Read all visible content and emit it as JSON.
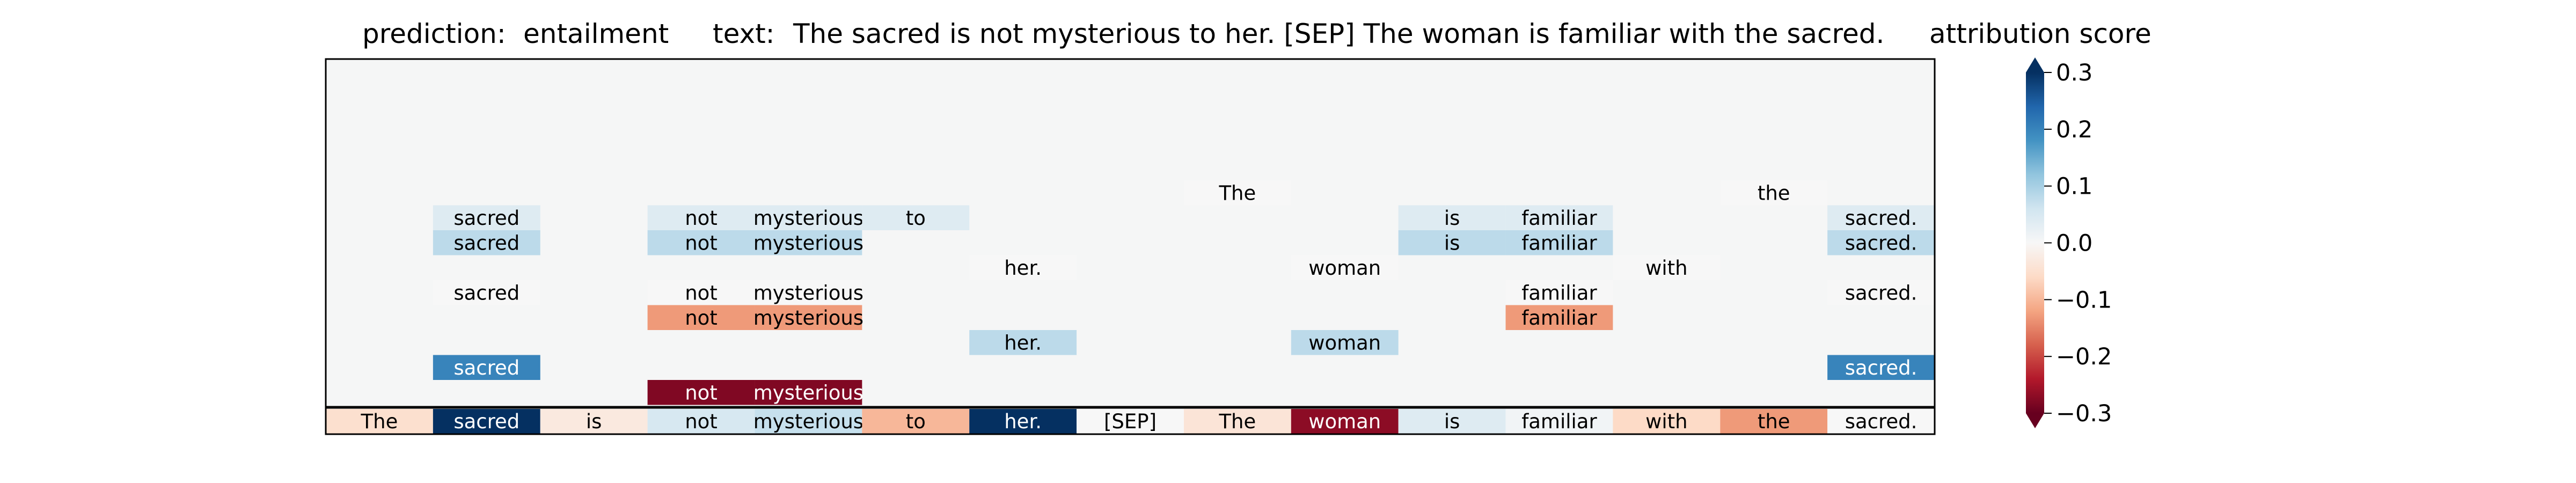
{
  "header": {
    "prediction_label": "prediction:",
    "prediction_value": "entailment",
    "text_label": "text:",
    "text_value": "The sacred is not mysterious to her. [SEP] The woman is familiar with the sacred.",
    "colorbar_title": "attribution score"
  },
  "colors": {
    "background": "#f5f6f6",
    "colormap": "RdBu",
    "positive": "#053061",
    "negative": "#67001f"
  },
  "chart_data": {
    "type": "heatmap",
    "tokens": [
      "The",
      "sacred",
      "is",
      "not",
      "mysterious",
      "to",
      "her.",
      "[SEP]",
      "The",
      "woman",
      "is",
      "familiar",
      "with",
      "the",
      "sacred."
    ],
    "bottom_row_scores": [
      -0.05,
      0.3,
      -0.03,
      0.05,
      0.07,
      -0.1,
      0.3,
      0.0,
      -0.04,
      -0.27,
      0.04,
      0.01,
      -0.06,
      -0.13,
      0.0
    ],
    "rows": [
      [
        null,
        null,
        null,
        null,
        null,
        null,
        null,
        null,
        0.0,
        null,
        null,
        null,
        null,
        0.0,
        null
      ],
      [
        null,
        0.04,
        null,
        0.04,
        0.04,
        0.04,
        null,
        null,
        null,
        null,
        0.04,
        0.04,
        null,
        null,
        0.04
      ],
      [
        null,
        0.08,
        null,
        0.08,
        0.08,
        null,
        null,
        null,
        null,
        null,
        0.08,
        0.08,
        null,
        null,
        0.08
      ],
      [
        null,
        null,
        null,
        null,
        null,
        null,
        0.0,
        null,
        null,
        0.0,
        null,
        null,
        0.0,
        null,
        null
      ],
      [
        null,
        0.0,
        null,
        0.0,
        0.0,
        null,
        null,
        null,
        null,
        null,
        null,
        0.0,
        null,
        null,
        0.0
      ],
      [
        null,
        null,
        null,
        -0.13,
        -0.13,
        null,
        null,
        null,
        null,
        null,
        null,
        -0.13,
        null,
        null,
        null
      ],
      [
        null,
        null,
        null,
        null,
        null,
        null,
        0.08,
        null,
        null,
        0.08,
        null,
        null,
        null,
        null,
        null
      ],
      [
        null,
        0.2,
        null,
        null,
        null,
        null,
        null,
        null,
        null,
        null,
        null,
        null,
        null,
        null,
        0.2
      ],
      [
        null,
        null,
        null,
        -0.28,
        -0.28,
        null,
        null,
        null,
        null,
        null,
        null,
        null,
        null,
        null,
        null
      ]
    ],
    "colorbar": {
      "range": [
        -0.3,
        0.3
      ],
      "ticks": [
        0.3,
        0.2,
        0.1,
        0.0,
        -0.1,
        -0.2,
        -0.3
      ],
      "tick_labels": [
        "0.3",
        "0.2",
        "0.1",
        "0.0",
        "−0.1",
        "−0.2",
        "−0.3"
      ]
    }
  }
}
